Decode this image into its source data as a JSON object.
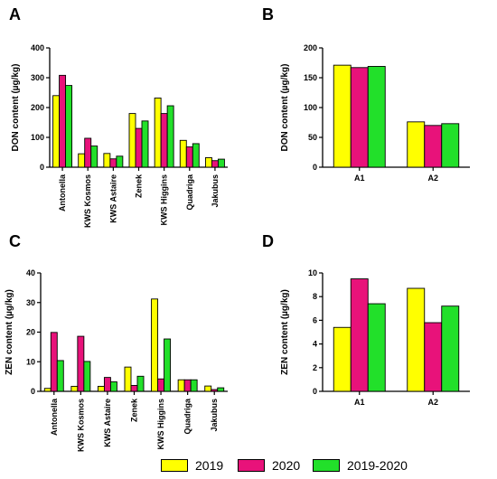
{
  "colors": {
    "2019": "#ffff00",
    "2020": "#e8127a",
    "2019-2020": "#22e02a"
  },
  "legend": [
    {
      "label": "2019",
      "color": "#ffff00"
    },
    {
      "label": "2020",
      "color": "#e8127a"
    },
    {
      "label": "2019-2020",
      "color": "#22e02a"
    }
  ],
  "chart_data": [
    {
      "panel": "A",
      "type": "bar",
      "ylabel": "DON content (µg/kg)",
      "ylim": [
        0,
        400
      ],
      "yticks": [
        0,
        100,
        200,
        300,
        400
      ],
      "categories": [
        "Antonella",
        "KWS Kosmos",
        "KWS Astaire",
        "Zenek",
        "KWS Higgins",
        "Quadriga",
        "Jakubus"
      ],
      "series": [
        {
          "name": "2019",
          "values": [
            240,
            45,
            46,
            180,
            232,
            90,
            32
          ]
        },
        {
          "name": "2020",
          "values": [
            308,
            97,
            28,
            130,
            180,
            68,
            22
          ]
        },
        {
          "name": "2019-2020",
          "values": [
            274,
            71,
            37,
            155,
            206,
            79,
            27
          ]
        }
      ]
    },
    {
      "panel": "B",
      "type": "bar",
      "ylabel": "DON content (µg/kg)",
      "ylim": [
        0,
        200
      ],
      "yticks": [
        0,
        50,
        100,
        150,
        200
      ],
      "categories": [
        "A1",
        "A2"
      ],
      "series": [
        {
          "name": "2019",
          "values": [
            171,
            76
          ]
        },
        {
          "name": "2020",
          "values": [
            167,
            70
          ]
        },
        {
          "name": "2019-2020",
          "values": [
            169,
            73
          ]
        }
      ]
    },
    {
      "panel": "C",
      "type": "bar",
      "ylabel": "ZEN content (µg/kg)",
      "ylim": [
        0,
        40
      ],
      "yticks": [
        0,
        10,
        20,
        30,
        40
      ],
      "categories": [
        "Antonella",
        "KWS Kosmos",
        "KWS Astaire",
        "Zenek",
        "KWS Higgins",
        "Quadriga",
        "Jakubus"
      ],
      "series": [
        {
          "name": "2019",
          "values": [
            1.0,
            1.7,
            1.7,
            8.2,
            31.2,
            3.9,
            1.8
          ]
        },
        {
          "name": "2020",
          "values": [
            19.9,
            18.6,
            4.7,
            2.0,
            4.2,
            3.9,
            0.6
          ]
        },
        {
          "name": "2019-2020",
          "values": [
            10.4,
            10.1,
            3.2,
            5.1,
            17.7,
            3.9,
            1.2
          ]
        }
      ]
    },
    {
      "panel": "D",
      "type": "bar",
      "ylabel": "ZEN content (µg/kg)",
      "ylim": [
        0,
        10
      ],
      "yticks": [
        0,
        2,
        4,
        6,
        8,
        10
      ],
      "categories": [
        "A1",
        "A2"
      ],
      "series": [
        {
          "name": "2019",
          "values": [
            5.4,
            8.7
          ]
        },
        {
          "name": "2020",
          "values": [
            9.5,
            5.8
          ]
        },
        {
          "name": "2019-2020",
          "values": [
            7.4,
            7.2
          ]
        }
      ]
    }
  ]
}
